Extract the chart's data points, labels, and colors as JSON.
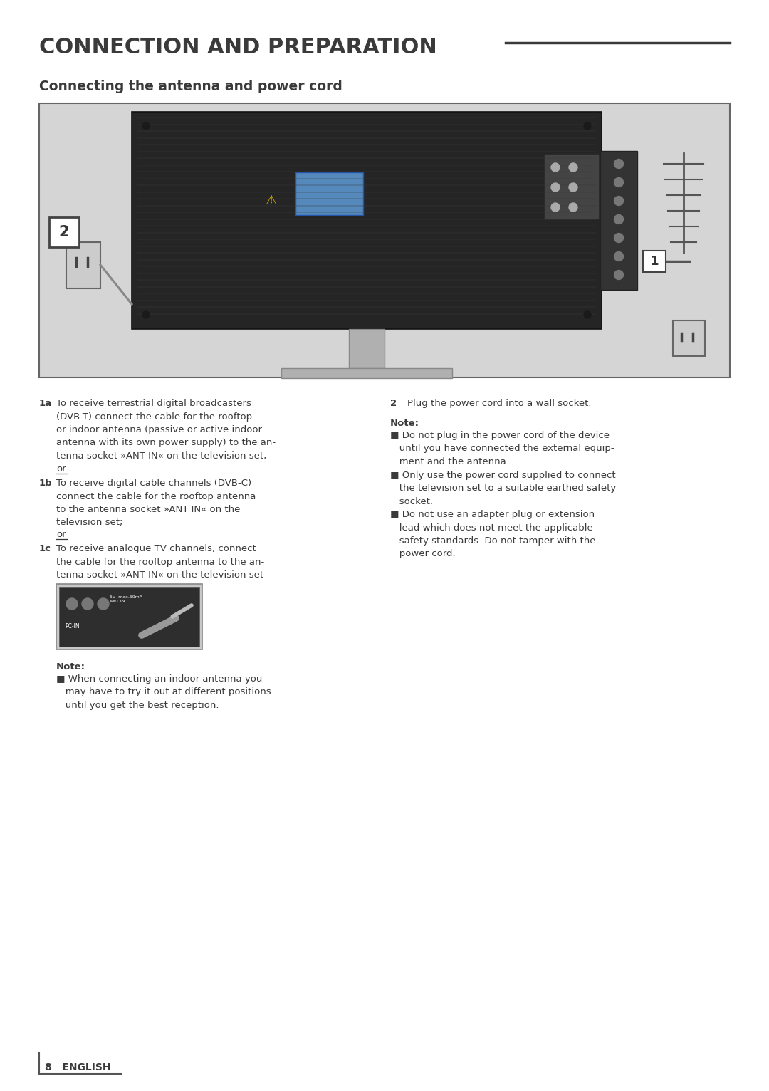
{
  "title": "CONNECTION AND PREPARATION",
  "subtitle": "Connecting the antenna and power cord",
  "title_color": "#3a3a3a",
  "subtitle_color": "#3a3a3a",
  "body_text_color": "#3a3a3a",
  "bg_color": "#ffffff",
  "line_color": "#3a3a3a",
  "footer_page": "8",
  "footer_lang": "ENGLISH",
  "t1a_bold": "1a",
  "t1a_text": "To receive terrestrial digital broadcasters\n(DVB-T) connect the cable for the rooftop\nor indoor antenna (passive or active indoor\nantenna with its own power supply) to the an-\ntenna socket »ANT IN« on the television set;",
  "t1b_bold": "1b",
  "t1b_text": "To receive digital cable channels (DVB-C)\nconnect the cable for the rooftop antenna\nto the antenna socket »ANT IN« on the\ntelevision set;",
  "t1c_bold": "1c",
  "t1c_text": "To receive analogue TV channels, connect\nthe cable for the rooftop antenna to the an-\ntenna socket »ANT IN« on the television set",
  "note_label": "Note:",
  "note_text": "■ When connecting an indoor antenna you\n   may have to try it out at different positions\n   until you get the best reception.",
  "t2_bold": "2",
  "t2_text": "Plug the power cord into a wall socket.",
  "note2_label": "Note:",
  "note2_b1": "■ Do not plug in the power cord of the device\n   until you have connected the external equip-\n   ment and the antenna.",
  "note2_b2": "■ Only use the power cord supplied to connect\n   the television set to a suitable earthed safety\n   socket.",
  "note2_b3": "■ Do not use an adapter plug or extension\n   lead which does not meet the applicable\n   safety standards. Do not tamper with the\n   power cord."
}
